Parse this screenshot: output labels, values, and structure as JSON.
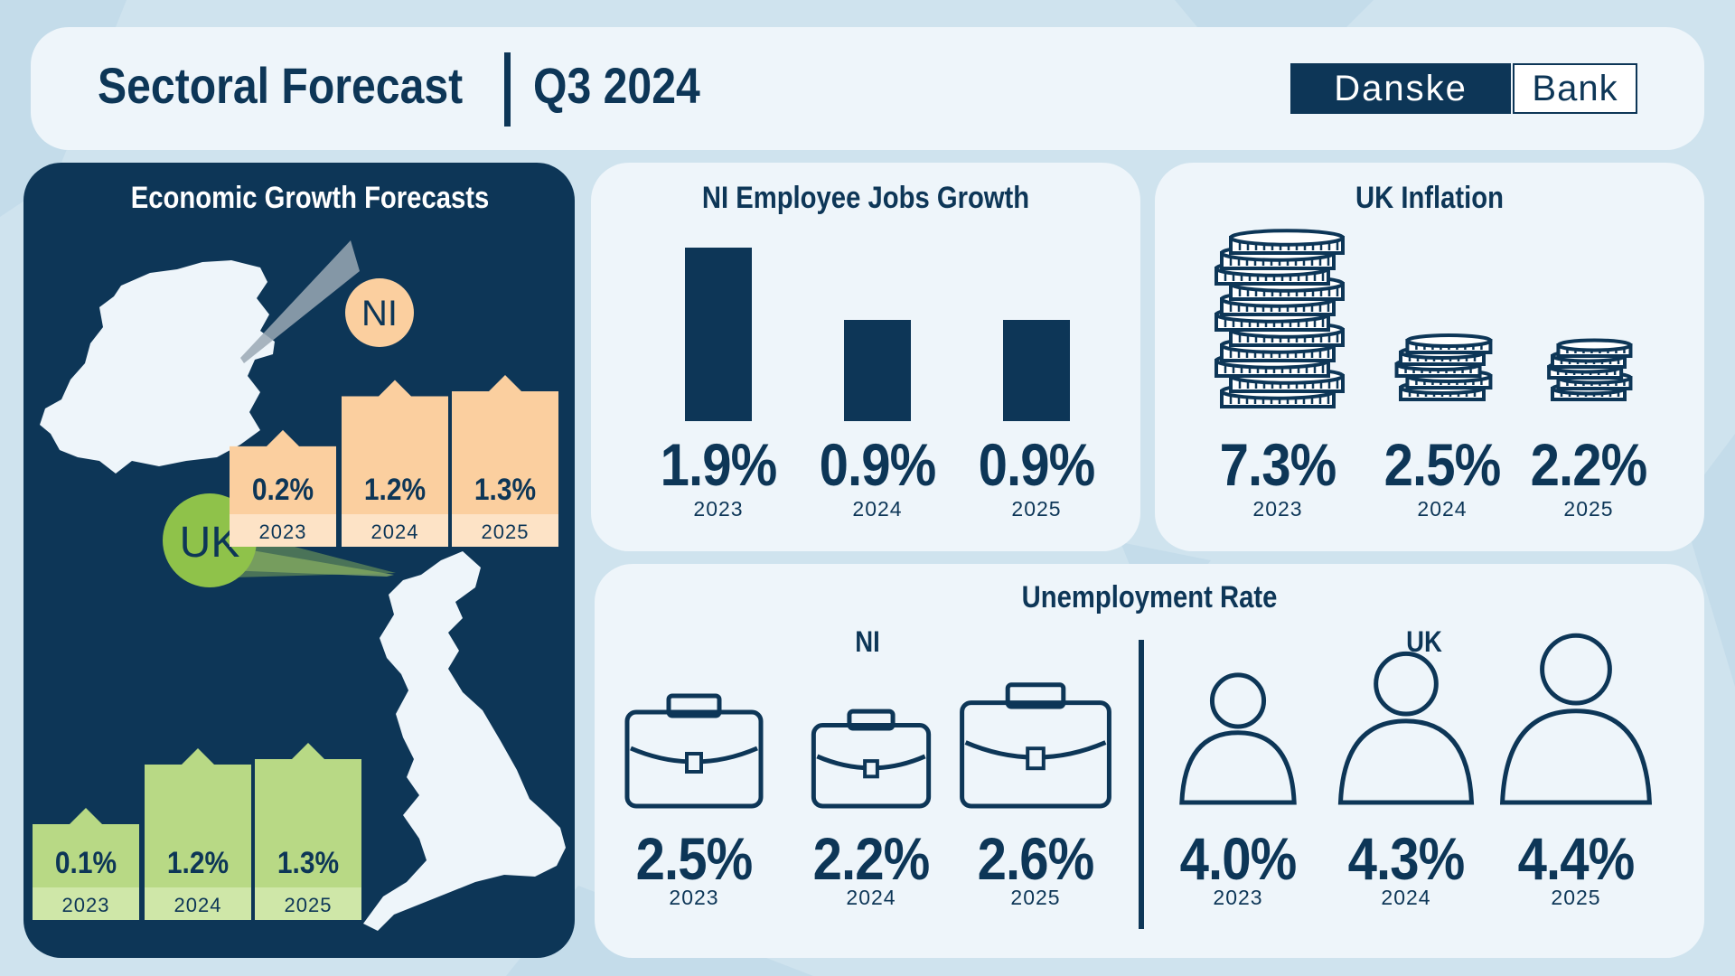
{
  "header": {
    "title": "Sectoral Forecast",
    "quarter": "Q3 2024",
    "logo_left": "Danske",
    "logo_right": "Bank"
  },
  "colors": {
    "navy": "#0d3657",
    "ni_peach": "#fbcf9f",
    "uk_green": "#b8d985",
    "card": "#eef5fa",
    "background": "#cfe3ee"
  },
  "growth": {
    "title": "Economic Growth Forecasts",
    "ni_label": "NI",
    "uk_label": "UK",
    "ni": [
      {
        "value": "0.2%",
        "year": "2023"
      },
      {
        "value": "1.2%",
        "year": "2024"
      },
      {
        "value": "1.3%",
        "year": "2025"
      }
    ],
    "uk": [
      {
        "value": "0.1%",
        "year": "2023"
      },
      {
        "value": "1.2%",
        "year": "2024"
      },
      {
        "value": "1.3%",
        "year": "2025"
      }
    ]
  },
  "jobs": {
    "title": "NI Employee Jobs Growth",
    "items": [
      {
        "value": "1.9%",
        "year": "2023"
      },
      {
        "value": "0.9%",
        "year": "2024"
      },
      {
        "value": "0.9%",
        "year": "2025"
      }
    ]
  },
  "inflation": {
    "title": "UK Inflation",
    "items": [
      {
        "value": "7.3%",
        "year": "2023"
      },
      {
        "value": "2.5%",
        "year": "2024"
      },
      {
        "value": "2.2%",
        "year": "2025"
      }
    ]
  },
  "unemployment": {
    "title": "Unemployment Rate",
    "ni_label": "NI",
    "uk_label": "UK",
    "ni": [
      {
        "value": "2.5%",
        "year": "2023"
      },
      {
        "value": "2.2%",
        "year": "2024"
      },
      {
        "value": "2.6%",
        "year": "2025"
      }
    ],
    "uk": [
      {
        "value": "4.0%",
        "year": "2023"
      },
      {
        "value": "4.3%",
        "year": "2024"
      },
      {
        "value": "4.4%",
        "year": "2025"
      }
    ]
  },
  "chart_data": [
    {
      "type": "bar",
      "title": "Economic Growth Forecasts",
      "categories": [
        "2023",
        "2024",
        "2025"
      ],
      "series": [
        {
          "name": "NI",
          "values": [
            0.2,
            1.2,
            1.3
          ]
        },
        {
          "name": "UK",
          "values": [
            0.1,
            1.2,
            1.3
          ]
        }
      ],
      "ylabel": "",
      "xlabel": ""
    },
    {
      "type": "bar",
      "title": "NI Employee Jobs Growth",
      "categories": [
        "2023",
        "2024",
        "2025"
      ],
      "values": [
        1.9,
        0.9,
        0.9
      ]
    },
    {
      "type": "bar",
      "title": "UK Inflation",
      "categories": [
        "2023",
        "2024",
        "2025"
      ],
      "values": [
        7.3,
        2.5,
        2.2
      ]
    },
    {
      "type": "bar",
      "title": "Unemployment Rate",
      "categories": [
        "2023",
        "2024",
        "2025"
      ],
      "series": [
        {
          "name": "NI",
          "values": [
            2.5,
            2.2,
            2.6
          ]
        },
        {
          "name": "UK",
          "values": [
            4.0,
            4.3,
            4.4
          ]
        }
      ]
    }
  ]
}
